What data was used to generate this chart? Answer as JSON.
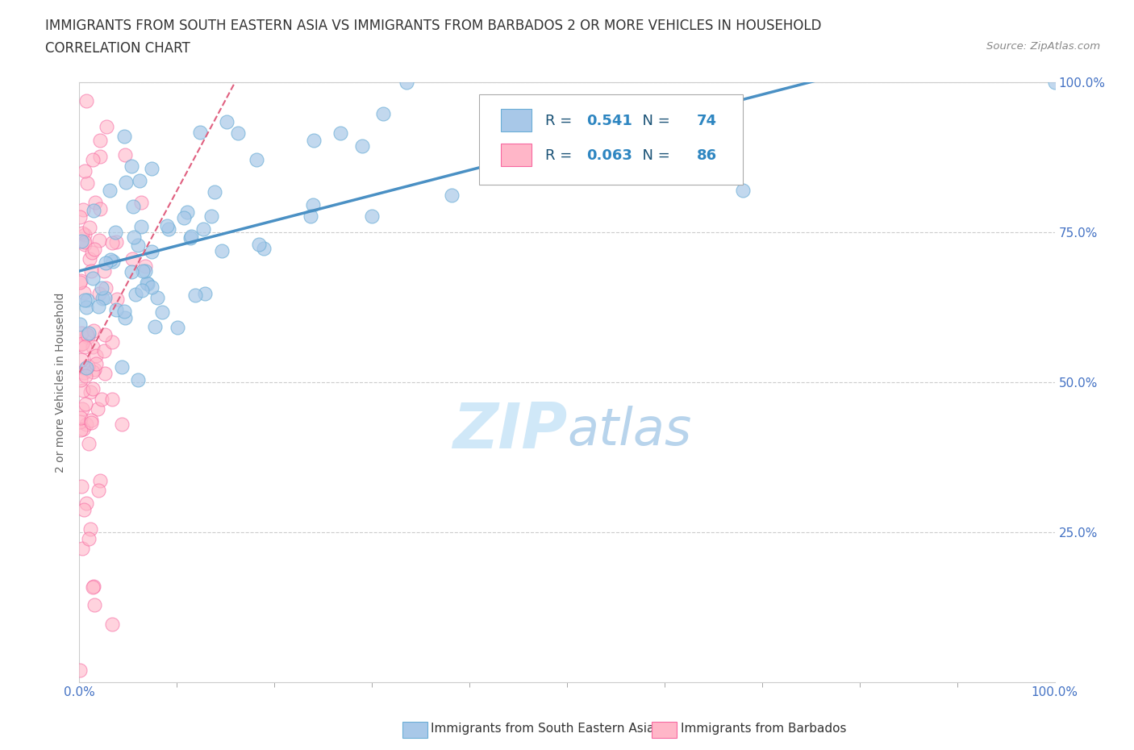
{
  "title_line1": "IMMIGRANTS FROM SOUTH EASTERN ASIA VS IMMIGRANTS FROM BARBADOS 2 OR MORE VEHICLES IN HOUSEHOLD",
  "title_line2": "CORRELATION CHART",
  "source_text": "Source: ZipAtlas.com",
  "ylabel": "2 or more Vehicles in Household",
  "xlabel_blue": "Immigrants from South Eastern Asia",
  "xlabel_pink": "Immigrants from Barbados",
  "blue_R": 0.541,
  "blue_N": 74,
  "pink_R": 0.063,
  "pink_N": 86,
  "blue_color": "#a8c8e8",
  "blue_edge_color": "#6baed6",
  "pink_color": "#ffb6c8",
  "pink_edge_color": "#f768a1",
  "blue_line_color": "#4a90c4",
  "pink_line_color": "#e06080",
  "grid_color": "#cccccc",
  "tick_color": "#4472c4",
  "ylabel_color": "#666666",
  "legend_R_color": "#1a5276",
  "legend_N_color": "#1a5276",
  "legend_val_color": "#2e86c1",
  "watermark_color": "#d0e8f8",
  "figsize": [
    14.06,
    9.3
  ],
  "dpi": 100,
  "xlim": [
    0.0,
    1.0
  ],
  "ylim": [
    0.0,
    1.0
  ],
  "ytick_right_labels": [
    "",
    "25.0%",
    "50.0%",
    "75.0%",
    "100.0%"
  ],
  "blue_line_y0": 0.62,
  "blue_line_y1": 0.88,
  "pink_line_y0": 0.62,
  "pink_line_y1": 0.66
}
